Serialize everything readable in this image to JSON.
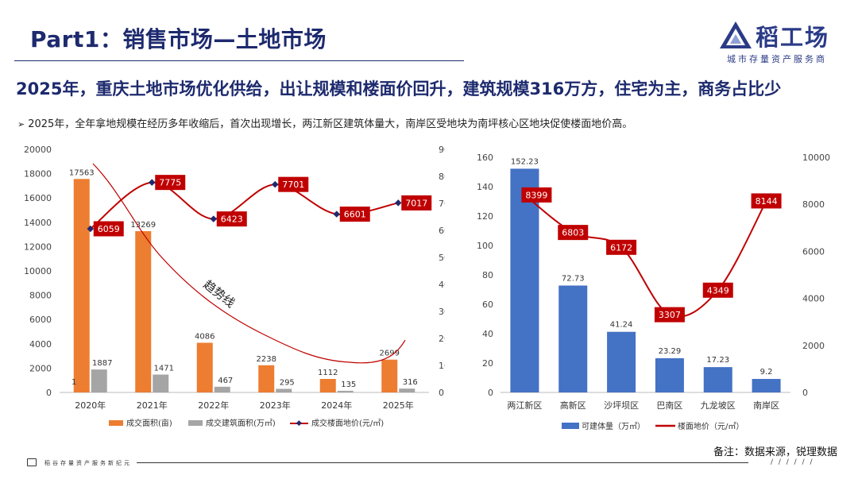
{
  "title": "Part1：销售市场—土地市场",
  "logo": {
    "name": "稻工场",
    "tagline": "城市存量资产服务商",
    "icon": "logo-triangle-icon"
  },
  "headline": "2025年，重庆土地市场优化供给，出让规模和楼面价回升，建筑规模316万方，住宅为主，商务占比少",
  "bullet": "2025年，全年拿地规模在经历多年收缩后，首次出现增长，两江新区建筑体量大，南岸区受地块为南坪核心区地块促使楼面地价高。",
  "note": "备注：数据来源，锐理数据",
  "footer": {
    "text": "稻谷存量资产服务新纪元",
    "slashes": "/ / / / / /"
  },
  "colors": {
    "orange": "#ed7d31",
    "gray": "#a5a5a5",
    "red": "#c00000",
    "blue": "#4472c4",
    "navy": "#1d2a6e"
  },
  "chart_data": [
    {
      "type": "bar",
      "categories": [
        "2020年",
        "2021年",
        "2022年",
        "2023年",
        "2024年",
        "2025年"
      ],
      "series": [
        {
          "name": "成交面积(亩)",
          "values": [
            17563,
            13269,
            4086,
            2238,
            1112,
            2699
          ],
          "axis": "left",
          "color": "#ed7d31"
        },
        {
          "name": "成交建筑面积(万㎡)",
          "values": [
            1887,
            1471,
            467,
            295,
            135,
            316
          ],
          "axis": "left",
          "color": "#a5a5a5"
        },
        {
          "name": "成交楼面地价(元/㎡)",
          "type": "line",
          "values": [
            6059,
            7775,
            6423,
            7701,
            6601,
            7017
          ],
          "axis": "right",
          "color": "#c00000"
        }
      ],
      "bar_data_labels": [
        [
          "17563",
          "1887"
        ],
        [
          "13269",
          "1471"
        ],
        [
          "4086",
          "467"
        ],
        [
          "2238",
          "295"
        ],
        [
          "1112",
          "135"
        ],
        [
          "2699",
          "316"
        ]
      ],
      "extra_label": "1",
      "ylim_left": [
        0,
        20000
      ],
      "yticks_left": [
        0,
        2000,
        4000,
        6000,
        8000,
        10000,
        12000,
        14000,
        16000,
        18000,
        20000
      ],
      "ylim_right": [
        0,
        9000
      ],
      "yticks_right": [
        0,
        1000,
        2000,
        3000,
        4000,
        5000,
        6000,
        7000,
        8000,
        9000
      ],
      "annotation": "趋势线",
      "legend_position": "bottom"
    },
    {
      "type": "bar",
      "categories": [
        "两江新区",
        "高新区",
        "沙坪坝区",
        "巴南区",
        "九龙坡区",
        "南岸区"
      ],
      "series": [
        {
          "name": "可建体量（万㎡）",
          "values": [
            152.23,
            72.73,
            41.24,
            23.29,
            17.23,
            9.2
          ],
          "axis": "left",
          "color": "#4472c4"
        },
        {
          "name": "楼面地价（元/㎡）",
          "type": "line",
          "values": [
            8399,
            6803,
            6172,
            3307,
            4349,
            8144
          ],
          "axis": "right",
          "color": "#c00000"
        }
      ],
      "bar_data_labels": [
        "152.23",
        "72.73",
        "41.24",
        "23.29",
        "17.23",
        "9.2"
      ],
      "ylim_left": [
        0,
        160
      ],
      "yticks_left": [
        0,
        20,
        40,
        60,
        80,
        100,
        120,
        140,
        160
      ],
      "ylim_right": [
        0,
        10000
      ],
      "yticks_right": [
        0,
        2000,
        4000,
        6000,
        8000,
        10000
      ],
      "legend_position": "bottom"
    }
  ]
}
